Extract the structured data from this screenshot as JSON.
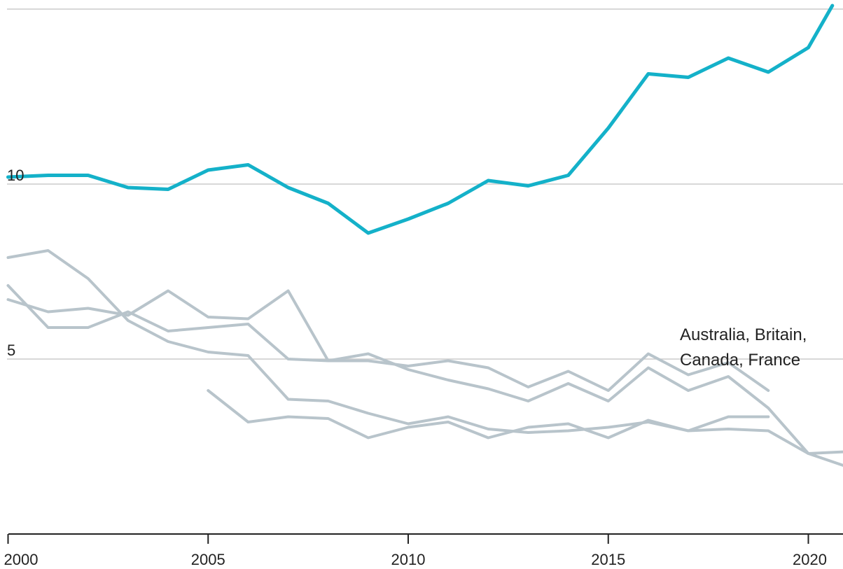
{
  "chart_data": {
    "type": "line",
    "title": "",
    "xlabel": "",
    "ylabel": "",
    "xlim": [
      1999.9,
      2020.9
    ],
    "ylim": [
      0,
      15
    ],
    "grid": true,
    "y_ticks": [
      {
        "value": 5,
        "label": "5"
      },
      {
        "value": 10,
        "label": "10"
      }
    ],
    "x_ticks": [
      {
        "value": 2000,
        "label": "2000"
      },
      {
        "value": 2005,
        "label": "2005"
      },
      {
        "value": 2010,
        "label": "2010"
      },
      {
        "value": 2015,
        "label": "2015"
      },
      {
        "value": 2020,
        "label": "2020"
      }
    ],
    "annotation": {
      "lines": [
        "Australia, Britain,",
        "Canada, France"
      ]
    },
    "colors": {
      "highlight": "#14b1c9",
      "others": "#b8c4cb",
      "grid": "#cccccc",
      "axis": "#222222"
    },
    "series": [
      {
        "highlight": true,
        "x": [
          2000,
          2001,
          2002,
          2003,
          2004,
          2005,
          2006,
          2007,
          2008,
          2009,
          2010,
          2011,
          2012,
          2013,
          2014,
          2015,
          2016,
          2017,
          2018,
          2019,
          2020,
          2020.6
        ],
        "values": [
          10.2,
          10.25,
          10.25,
          9.9,
          9.85,
          10.4,
          10.55,
          9.9,
          9.45,
          8.6,
          9.0,
          9.45,
          10.1,
          9.95,
          10.25,
          11.6,
          13.15,
          13.05,
          13.6,
          13.2,
          13.9,
          15.1
        ]
      },
      {
        "x": [
          2000,
          2001,
          2002,
          2003,
          2004,
          2005,
          2006,
          2007,
          2008,
          2009,
          2010,
          2011,
          2012,
          2013,
          2014,
          2015,
          2016,
          2017,
          2018,
          2019,
          2020,
          2020.9
        ],
        "values": [
          7.9,
          8.1,
          7.3,
          6.1,
          5.5,
          5.2,
          5.1,
          3.85,
          3.8,
          3.45,
          3.15,
          3.35,
          3.0,
          2.9,
          2.95,
          3.05,
          3.2,
          2.95,
          3.0,
          2.95,
          2.3,
          1.95
        ]
      },
      {
        "x": [
          2000,
          2001,
          2002,
          2003,
          2004,
          2005,
          2006,
          2007,
          2008,
          2009,
          2010,
          2011,
          2012,
          2013,
          2014,
          2015,
          2016,
          2017,
          2018,
          2019,
          2020,
          2020.9
        ],
        "values": [
          7.1,
          5.9,
          5.9,
          6.35,
          5.8,
          5.9,
          6.0,
          5.0,
          4.95,
          5.15,
          4.7,
          4.4,
          4.15,
          3.8,
          4.3,
          3.8,
          4.75,
          4.1,
          4.5,
          3.6,
          2.3,
          2.35
        ]
      },
      {
        "x": [
          2000,
          2001,
          2002,
          2003,
          2004,
          2005,
          2006,
          2007,
          2008,
          2009,
          2010,
          2011,
          2012,
          2013,
          2014,
          2015,
          2016,
          2017,
          2018,
          2019
        ],
        "values": [
          6.7,
          6.35,
          6.45,
          6.25,
          6.95,
          6.2,
          6.15,
          6.95,
          4.95,
          4.95,
          4.8,
          4.95,
          4.75,
          4.2,
          4.65,
          4.1,
          5.15,
          4.55,
          4.9,
          4.1
        ]
      },
      {
        "x": [
          2005,
          2006,
          2007,
          2008,
          2009,
          2010,
          2011,
          2012,
          2013,
          2014,
          2015,
          2016,
          2017,
          2018,
          2019
        ],
        "values": [
          4.1,
          3.2,
          3.35,
          3.3,
          2.75,
          3.05,
          3.2,
          2.75,
          3.05,
          3.15,
          2.75,
          3.25,
          2.95,
          3.35,
          3.35
        ]
      }
    ]
  }
}
